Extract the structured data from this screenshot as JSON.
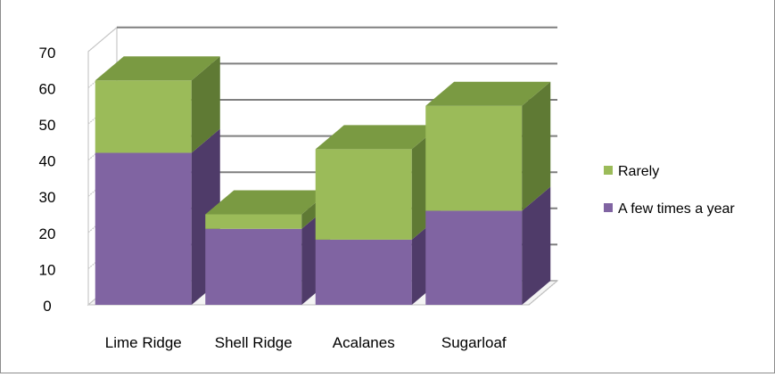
{
  "chart_data": {
    "type": "bar",
    "stacked": true,
    "three_d": true,
    "categories": [
      "Lime Ridge",
      "Shell Ridge",
      "Acalanes",
      "Sugarloaf"
    ],
    "series": [
      {
        "name": "A few times a year",
        "values": [
          42,
          21,
          18,
          26
        ],
        "color": "#8064a2",
        "side_color": "#4f3b69",
        "top_color": "#6a5088"
      },
      {
        "name": "Rarely",
        "values": [
          20,
          4,
          25,
          29
        ],
        "color": "#9bbb59",
        "side_color": "#5f7a34",
        "top_color": "#7a9a42"
      }
    ],
    "ylim": [
      0,
      70
    ],
    "y_ticks": [
      "0",
      "10",
      "20",
      "30",
      "40",
      "50",
      "60",
      "70"
    ],
    "grid": true,
    "legend": "right",
    "legend_order": [
      "Rarely",
      "A few times a year"
    ]
  }
}
